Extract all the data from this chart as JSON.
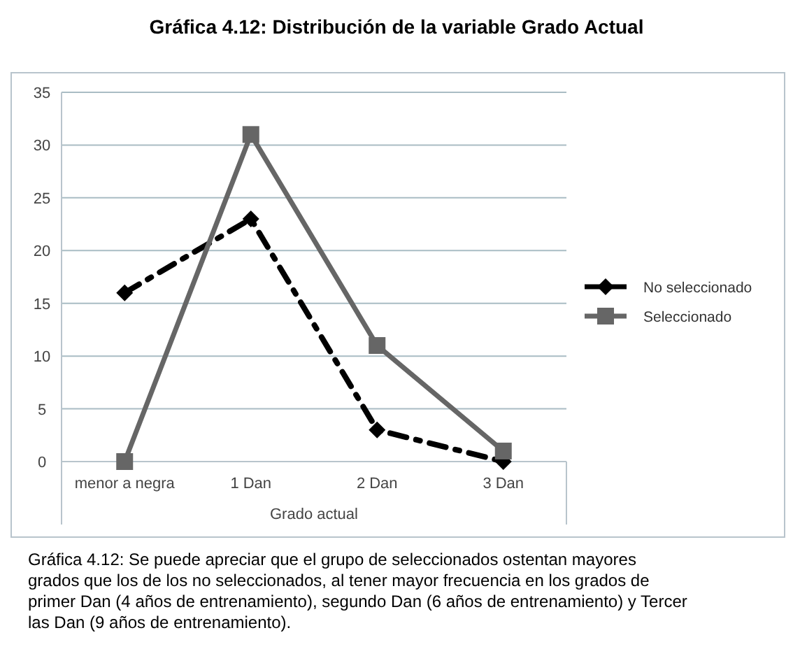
{
  "chart_data": {
    "type": "line",
    "title": "Gráfica 4.12: Distribución de la variable Grado Actual",
    "xlabel": "Grado actual",
    "categories": [
      "menor a negra",
      "1 Dan",
      "2 Dan",
      "3 Dan"
    ],
    "series": [
      {
        "name": "No seleccionado",
        "color": "#000000",
        "values": [
          16,
          23,
          3,
          0
        ],
        "marker": "diamond",
        "line_style": "dashed"
      },
      {
        "name": "Seleccionado",
        "color": "#666666",
        "values": [
          0,
          31,
          11,
          1
        ],
        "marker": "square",
        "line_style": "solid"
      }
    ],
    "ylim": [
      0,
      35
    ],
    "yticks": [
      0,
      5,
      10,
      15,
      20,
      25,
      30,
      35
    ],
    "grid": "y",
    "legend": "right",
    "annotations": [
      "Gráfica 4.12: Se puede apreciar que el grupo de seleccionados ostentan mayores grados que los de los no seleccionados,  al tener mayor frecuencia en los grados de primer Dan (4 años de entrenamiento), segundo Dan (6 años de entrenamiento) y Tercer las Dan (9 años de entrenamiento)."
    ]
  }
}
